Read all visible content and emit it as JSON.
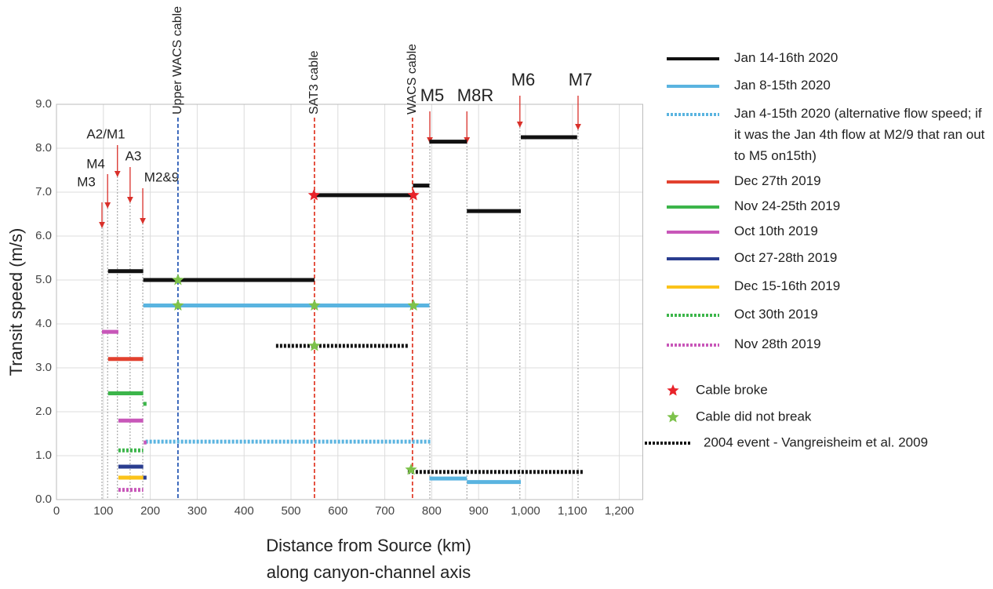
{
  "chart_data": {
    "type": "segments",
    "ylabel": "Transit speed (m/s)",
    "xlabel": [
      "Distance from Source (km)",
      "along canyon-channel axis"
    ],
    "xlim": [
      0,
      1250
    ],
    "ylim": [
      0,
      9
    ],
    "xticks": [
      0,
      100,
      200,
      300,
      400,
      500,
      600,
      700,
      800,
      900,
      {
        "value": 1000,
        "label": "1,000"
      },
      {
        "value": 1100,
        "label": "1,100"
      },
      {
        "value": 1200,
        "label": "1,200"
      }
    ],
    "yticks": [
      {
        "value": 0,
        "label": "0.0"
      },
      {
        "value": 1,
        "label": "1.0"
      },
      {
        "value": 2,
        "label": "2.0"
      },
      {
        "value": 3,
        "label": "3.0"
      },
      {
        "value": 4,
        "label": "4.0"
      },
      {
        "value": 5,
        "label": "5.0"
      },
      {
        "value": 6,
        "label": "6.0"
      },
      {
        "value": 7,
        "label": "7.0"
      },
      {
        "value": 8,
        "label": "8.0"
      },
      {
        "value": 9,
        "label": "9.0"
      }
    ],
    "grid": true,
    "series": [
      {
        "name": "Jan 14-16th  2020",
        "color": "#111111",
        "style": "solid",
        "segments": [
          {
            "x": [
              110,
              185
            ],
            "y": 5.2
          },
          {
            "x": [
              185,
              550
            ],
            "y": 5.0
          },
          {
            "x": [
              550,
              760
            ],
            "y": 6.93
          },
          {
            "x": [
              760,
              795
            ],
            "y": 7.15
          },
          {
            "x": [
              795,
              875
            ],
            "y": 8.15
          },
          {
            "x": [
              875,
              990
            ],
            "y": 6.57
          },
          {
            "x": [
              990,
              1110
            ],
            "y": 8.25
          }
        ]
      },
      {
        "name": "Jan 8-15th 2020",
        "color": "#5ab4e0",
        "style": "solid",
        "segments": [
          {
            "x": [
              185,
              795
            ],
            "y": 4.42
          },
          {
            "x": [
              795,
              875
            ],
            "y": 0.48
          },
          {
            "x": [
              875,
              990
            ],
            "y": 0.4
          }
        ]
      },
      {
        "name": "Jan 4-15th 2020 (alternative flow speed; if it was the Jan 4th flow at M2/9 that ran out to M5 on15th)",
        "color": "#5ab4e0",
        "style": "dotted",
        "segments": [
          {
            "x": [
              190,
              800
            ],
            "y": 1.32
          }
        ]
      },
      {
        "name": "Dec 27th 2019",
        "color": "#e2412f",
        "style": "solid",
        "segments": [
          {
            "x": [
              110,
              185
            ],
            "y": 3.2
          }
        ]
      },
      {
        "name": "Nov 24-25th 2019",
        "color": "#3cb54a",
        "style": "solid",
        "segments": [
          {
            "x": [
              110,
              185
            ],
            "y": 2.42
          },
          {
            "x": [
              185,
              192
            ],
            "y": 2.18
          }
        ]
      },
      {
        "name": "Oct 10th 2019",
        "color": "#c857b9",
        "style": "solid",
        "segments": [
          {
            "x": [
              97,
              132
            ],
            "y": 3.82
          },
          {
            "x": [
              132,
              185
            ],
            "y": 1.8
          },
          {
            "x": [
              186,
              192
            ],
            "y": 1.3
          }
        ]
      },
      {
        "name": "Oct 27-28th 2019",
        "color": "#2a3d8f",
        "style": "solid",
        "segments": [
          {
            "x": [
              132,
              185
            ],
            "y": 0.75
          },
          {
            "x": [
              185,
              192
            ],
            "y": 0.5
          }
        ]
      },
      {
        "name": "Dec 15-16th 2019",
        "color": "#fbc31b",
        "style": "solid",
        "segments": [
          {
            "x": [
              132,
              185
            ],
            "y": 0.5
          }
        ]
      },
      {
        "name": "Oct 30th 2019",
        "color": "#3cb54a",
        "style": "dotted",
        "segments": [
          {
            "x": [
              132,
              185
            ],
            "y": 1.12
          }
        ]
      },
      {
        "name": "Nov 28th 2019",
        "color": "#c857b9",
        "style": "dotted",
        "segments": [
          {
            "x": [
              132,
              185
            ],
            "y": 0.22
          }
        ]
      },
      {
        "name": "2004 event - Vangreisheim et al. 2009",
        "color": "#111111",
        "style": "dotted",
        "segments": [
          {
            "x": [
              468,
              749
            ],
            "y": 3.5
          },
          {
            "x": [
              749,
              1125
            ],
            "y": 0.63
          }
        ]
      }
    ],
    "markers": [
      {
        "name": "Cable broke",
        "color": "#e8232a",
        "points": [
          {
            "x": 549,
            "y": 6.93
          },
          {
            "x": 761,
            "y": 6.93
          }
        ]
      },
      {
        "name": "Cable did not break",
        "color": "#7dc24b",
        "points": [
          {
            "x": 259,
            "y": 5.0
          },
          {
            "x": 259,
            "y": 4.42
          },
          {
            "x": 550,
            "y": 4.42
          },
          {
            "x": 761,
            "y": 4.42
          },
          {
            "x": 550,
            "y": 3.5
          },
          {
            "x": 756,
            "y": 0.68
          }
        ]
      }
    ],
    "cables": [
      {
        "label": "Upper WACS cable",
        "x": 259,
        "color": "#2a5bb5"
      },
      {
        "label": "SAT3 cable",
        "x": 550,
        "color": "#e2412f"
      },
      {
        "label": "WACS cable",
        "x": 759,
        "color": "#e2412f"
      }
    ],
    "sites": [
      {
        "label": "M3",
        "x": 97
      },
      {
        "label": "M4",
        "x": 109
      },
      {
        "label": "A2/M1",
        "x": 130
      },
      {
        "label": "A3",
        "x": 157
      },
      {
        "label": "M2&9",
        "x": 184
      },
      {
        "label": "M5",
        "x": 796
      },
      {
        "label": "M8R",
        "x": 875
      },
      {
        "label": "M6",
        "x": 988
      },
      {
        "label": "M7",
        "x": 1112
      }
    ]
  }
}
